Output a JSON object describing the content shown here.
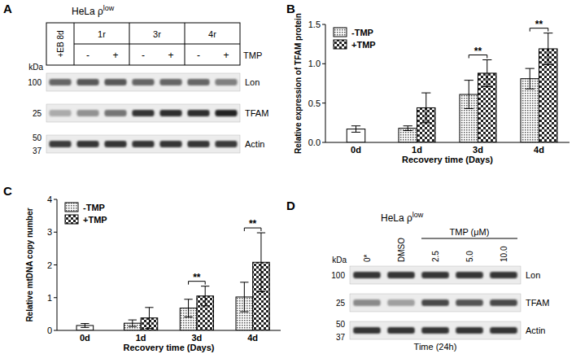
{
  "panels": [
    "A",
    "B",
    "C",
    "D"
  ],
  "chart_data": [
    {
      "type": "bar",
      "categories": [
        "0d",
        "1d",
        "3d",
        "4d"
      ],
      "x_label": "Recovery time (Days)",
      "y_label": "Relative expression of TFAM protein",
      "ylim": [
        0,
        1.5
      ],
      "yticks": [
        {
          "value": 0,
          "label": "0.0"
        },
        0.5,
        {
          "value": 1,
          "label": "1.0"
        },
        1.5
      ],
      "grid": false,
      "legend": "upper left",
      "series": [
        {
          "name": "-TMP",
          "color": "#555555",
          "values": [
            null,
            0.18,
            0.61,
            0.81
          ],
          "errors": [
            null,
            0.03,
            0.18,
            0.13
          ]
        },
        {
          "name": "+TMP",
          "color": "#222222",
          "values": [
            null,
            0.44,
            0.88,
            1.19
          ],
          "errors": [
            null,
            0.19,
            0.17,
            0.2
          ]
        },
        {
          "color": "#ffffff",
          "values": [
            0.17,
            null,
            null,
            null
          ],
          "errors": [
            0.04,
            null,
            null,
            null
          ]
        }
      ],
      "annotations": [
        {
          "text": "**",
          "category": "3d"
        },
        {
          "text": "**",
          "category": "4d"
        }
      ]
    },
    {
      "type": "bar",
      "categories": [
        "0d",
        "1d",
        "3d",
        "4d"
      ],
      "x_label": "Recovery time (Days)",
      "y_label": "Relative mtDNA copy number",
      "ylim": [
        0,
        4
      ],
      "yticks": [
        0,
        1,
        2,
        3,
        4
      ],
      "grid": false,
      "legend": "upper left",
      "series": [
        {
          "name": "-TMP",
          "color": "#555555",
          "values": [
            null,
            0.22,
            0.68,
            1.02
          ],
          "errors": [
            null,
            0.1,
            0.27,
            0.45
          ]
        },
        {
          "name": "+TMP",
          "color": "#222222",
          "values": [
            null,
            0.38,
            1.05,
            2.08
          ],
          "errors": [
            null,
            0.32,
            0.3,
            0.9
          ]
        },
        {
          "color": "#ffffff",
          "values": [
            0.15,
            null,
            null,
            null
          ],
          "errors": [
            0.06,
            null,
            null,
            null
          ]
        }
      ],
      "annotations": [
        {
          "text": "**",
          "category": "3d"
        },
        {
          "text": "**",
          "category": "4d"
        }
      ]
    }
  ],
  "blots": [
    {
      "cell_line": {
        "text": "HeLa ρ",
        "sup": "low"
      },
      "groups": [
        {
          "label": "+EB 8d",
          "lanes": 1
        },
        {
          "label": "1r",
          "lanes": 2
        },
        {
          "label": "3r",
          "lanes": 2
        },
        {
          "label": "4r",
          "lanes": 2
        }
      ],
      "treatment_label": "TMP",
      "treatment": [
        null,
        "-",
        "+",
        "-",
        "+",
        "-",
        "+"
      ],
      "marker_title": "kDa",
      "bands": [
        {
          "name": "Lon",
          "markers": [
            100
          ],
          "intensities": [
            0.62,
            0.68,
            0.68,
            0.62,
            0.62,
            0.62,
            0.5
          ]
        },
        {
          "name": "TFAM",
          "markers": [
            25
          ],
          "intensities": [
            0.3,
            0.42,
            0.55,
            0.85,
            0.88,
            0.88,
            0.93
          ]
        },
        {
          "name": "Actin",
          "markers": [
            50,
            37
          ],
          "intensities": [
            0.82,
            0.84,
            0.84,
            0.84,
            0.84,
            0.84,
            0.82
          ]
        }
      ]
    },
    {
      "cell_line": {
        "text": "HeLa ρ",
        "sup": "low"
      },
      "lane_labels": [
        "0*",
        "DMSO",
        "2.5",
        "5.0",
        "10.0"
      ],
      "group": {
        "label": "TMP (μM)",
        "lanes": [
          2,
          3,
          4
        ]
      },
      "marker_title": "kDa",
      "bands": [
        {
          "name": "Lon",
          "markers": [
            100
          ],
          "intensities": [
            0.85,
            0.85,
            0.85,
            0.85,
            0.85
          ]
        },
        {
          "name": "TFAM",
          "markers": [
            25
          ],
          "intensities": [
            0.45,
            0.35,
            0.75,
            0.7,
            0.75
          ]
        },
        {
          "name": "Actin",
          "markers": [
            50,
            37
          ],
          "intensities": [
            0.85,
            0.85,
            0.85,
            0.85,
            0.85
          ]
        }
      ],
      "footer": "Time (24h)"
    }
  ]
}
